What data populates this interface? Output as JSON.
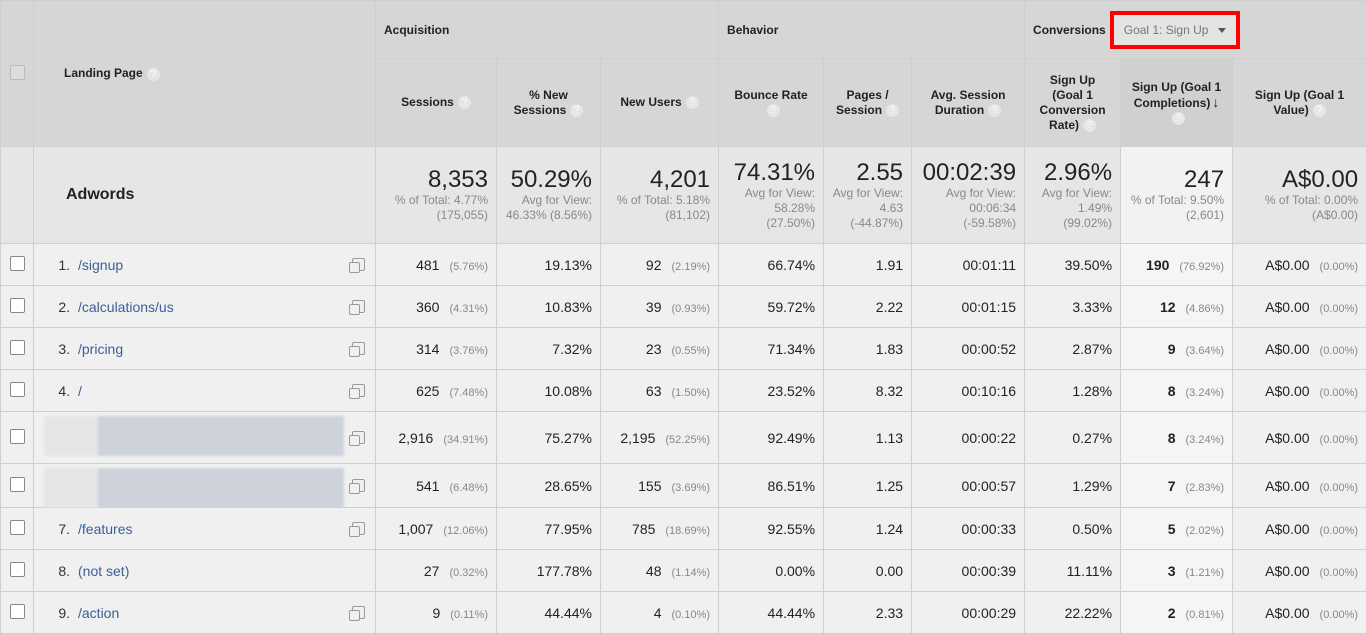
{
  "header": {
    "landing_page": "Landing Page",
    "groups": {
      "acquisition": "Acquisition",
      "behavior": "Behavior",
      "conversions": "Conversions"
    },
    "goal_select": "Goal 1: Sign Up",
    "columns": [
      "Sessions",
      "% New Sessions",
      "New Users",
      "Bounce Rate",
      "Pages / Session",
      "Avg. Session Duration",
      "Sign Up (Goal 1 Conversion Rate)",
      "Sign Up (Goal 1 Completions)",
      "Sign Up (Goal 1 Value)"
    ],
    "sorted_column": 7
  },
  "totals": {
    "label": "Adwords",
    "cells": [
      {
        "value": "8,353",
        "sub": "% of Total: 4.77% (175,055)"
      },
      {
        "value": "50.29%",
        "sub": "Avg for View: 46.33% (8.56%)"
      },
      {
        "value": "4,201",
        "sub": "% of Total: 5.18% (81,102)"
      },
      {
        "value": "74.31%",
        "sub": "Avg for View: 58.28% (27.50%)"
      },
      {
        "value": "2.55",
        "sub": "Avg for View: 4.63 (-44.87%)"
      },
      {
        "value": "00:02:39",
        "sub": "Avg for View: 00:06:34 (-59.58%)"
      },
      {
        "value": "2.96%",
        "sub": "Avg for View: 1.49% (99.02%)"
      },
      {
        "value": "247",
        "sub": "% of Total: 9.50% (2,601)"
      },
      {
        "value": "A$0.00",
        "sub": "% of Total: 0.00% (A$0.00)"
      }
    ]
  },
  "rows": [
    {
      "index": "1.",
      "page": "/signup",
      "sessions": "481",
      "sessions_pct": "(5.76%)",
      "new_sessions": "19.13%",
      "new_users": "92",
      "new_users_pct": "(2.19%)",
      "bounce": "66.74%",
      "pages": "1.91",
      "duration": "00:01:11",
      "conv_rate": "39.50%",
      "completions": "190",
      "completions_pct": "(76.92%)",
      "value": "A$0.00",
      "value_pct": "(0.00%)"
    },
    {
      "index": "2.",
      "page": "/calculations/us",
      "sessions": "360",
      "sessions_pct": "(4.31%)",
      "new_sessions": "10.83%",
      "new_users": "39",
      "new_users_pct": "(0.93%)",
      "bounce": "59.72%",
      "pages": "2.22",
      "duration": "00:01:15",
      "conv_rate": "3.33%",
      "completions": "12",
      "completions_pct": "(4.86%)",
      "value": "A$0.00",
      "value_pct": "(0.00%)"
    },
    {
      "index": "3.",
      "page": "/pricing",
      "sessions": "314",
      "sessions_pct": "(3.76%)",
      "new_sessions": "7.32%",
      "new_users": "23",
      "new_users_pct": "(0.55%)",
      "bounce": "71.34%",
      "pages": "1.83",
      "duration": "00:00:52",
      "conv_rate": "2.87%",
      "completions": "9",
      "completions_pct": "(3.64%)",
      "value": "A$0.00",
      "value_pct": "(0.00%)"
    },
    {
      "index": "4.",
      "page": "/",
      "sessions": "625",
      "sessions_pct": "(7.48%)",
      "new_sessions": "10.08%",
      "new_users": "63",
      "new_users_pct": "(1.50%)",
      "bounce": "23.52%",
      "pages": "8.32",
      "duration": "00:10:16",
      "conv_rate": "1.28%",
      "completions": "8",
      "completions_pct": "(3.24%)",
      "value": "A$0.00",
      "value_pct": "(0.00%)"
    },
    {
      "index": "",
      "page": "",
      "redacted": true,
      "sessions": "2,916",
      "sessions_pct": "(34.91%)",
      "new_sessions": "75.27%",
      "new_users": "2,195",
      "new_users_pct": "(52.25%)",
      "bounce": "92.49%",
      "pages": "1.13",
      "duration": "00:00:22",
      "conv_rate": "0.27%",
      "completions": "8",
      "completions_pct": "(3.24%)",
      "value": "A$0.00",
      "value_pct": "(0.00%)"
    },
    {
      "index": "",
      "page": "",
      "redacted": true,
      "sessions": "541",
      "sessions_pct": "(6.48%)",
      "new_sessions": "28.65%",
      "new_users": "155",
      "new_users_pct": "(3.69%)",
      "bounce": "86.51%",
      "pages": "1.25",
      "duration": "00:00:57",
      "conv_rate": "1.29%",
      "completions": "7",
      "completions_pct": "(2.83%)",
      "value": "A$0.00",
      "value_pct": "(0.00%)"
    },
    {
      "index": "7.",
      "page": "/features",
      "sessions": "1,007",
      "sessions_pct": "(12.06%)",
      "new_sessions": "77.95%",
      "new_users": "785",
      "new_users_pct": "(18.69%)",
      "bounce": "92.55%",
      "pages": "1.24",
      "duration": "00:00:33",
      "conv_rate": "0.50%",
      "completions": "5",
      "completions_pct": "(2.02%)",
      "value": "A$0.00",
      "value_pct": "(0.00%)"
    },
    {
      "index": "8.",
      "page": "(not set)",
      "no_link_icon": true,
      "sessions": "27",
      "sessions_pct": "(0.32%)",
      "new_sessions": "177.78%",
      "new_users": "48",
      "new_users_pct": "(1.14%)",
      "bounce": "0.00%",
      "pages": "0.00",
      "duration": "00:00:39",
      "conv_rate": "11.11%",
      "completions": "3",
      "completions_pct": "(1.21%)",
      "value": "A$0.00",
      "value_pct": "(0.00%)"
    },
    {
      "index": "9.",
      "page": "/action",
      "sessions": "9",
      "sessions_pct": "(0.11%)",
      "new_sessions": "44.44%",
      "new_users": "4",
      "new_users_pct": "(0.10%)",
      "bounce": "44.44%",
      "pages": "2.33",
      "duration": "00:00:29",
      "conv_rate": "22.22%",
      "completions": "2",
      "completions_pct": "(0.81%)",
      "value": "A$0.00",
      "value_pct": "(0.00%)"
    }
  ]
}
